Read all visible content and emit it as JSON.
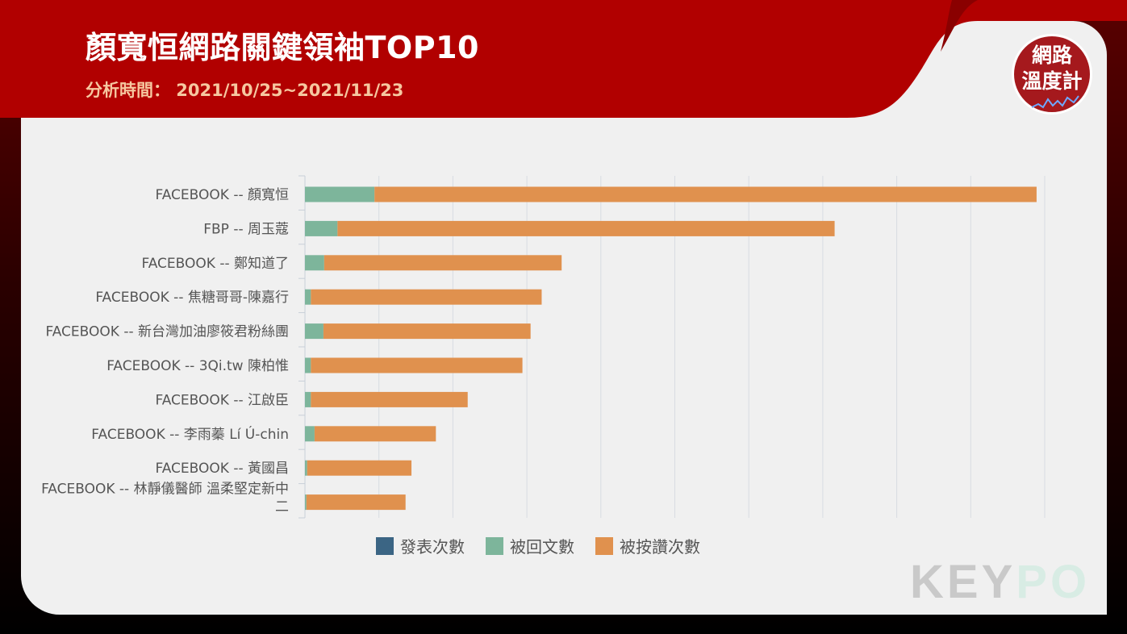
{
  "header": {
    "title": "顏寬恒網路關鍵領袖TOP10",
    "subtitle": "分析時間： 2021/10/25~2021/11/23",
    "badge_line1": "網路",
    "badge_line2": "溫度計"
  },
  "watermark": {
    "key": "KEY",
    "po": "PO"
  },
  "colors": {
    "header_red": "#b10000",
    "posts": "#3b6584",
    "replies": "#7db59b",
    "likes": "#e0914e"
  },
  "chart_data": {
    "type": "bar",
    "orientation": "horizontal",
    "stacked": true,
    "title": "",
    "xlabel": "",
    "ylabel": "",
    "xlim": [
      0,
      100
    ],
    "grid": true,
    "legend_position": "bottom",
    "categories": [
      "FACEBOOK -- 顏寬恒",
      "FBP -- 周玉蔻",
      "FACEBOOK -- 鄭知道了",
      "FACEBOOK -- 焦糖哥哥-陳嘉行",
      "FACEBOOK -- 新台灣加油廖筱君粉絲團",
      "FACEBOOK -- 3Qi.tw 陳柏惟",
      "FACEBOOK -- 江啟臣",
      "FACEBOOK -- 李雨蓁 Lí Ú-chin",
      "FACEBOOK -- 黃國昌",
      "FACEBOOK -- 林靜儀醫師 溫柔堅定新中二"
    ],
    "series": [
      {
        "name": "發表次數",
        "color": "#3b6584",
        "values": [
          0,
          0,
          0,
          0,
          0,
          0,
          0,
          0,
          0,
          0
        ]
      },
      {
        "name": "被回文數",
        "color": "#7db59b",
        "values": [
          9.4,
          4.4,
          2.6,
          0.8,
          2.5,
          0.8,
          0.8,
          1.3,
          0.3,
          0.2
        ]
      },
      {
        "name": "被按讚次數",
        "color": "#e0914e",
        "values": [
          89.5,
          67.2,
          32.1,
          31.2,
          28.0,
          28.6,
          21.2,
          16.4,
          14.1,
          13.4
        ]
      }
    ]
  }
}
